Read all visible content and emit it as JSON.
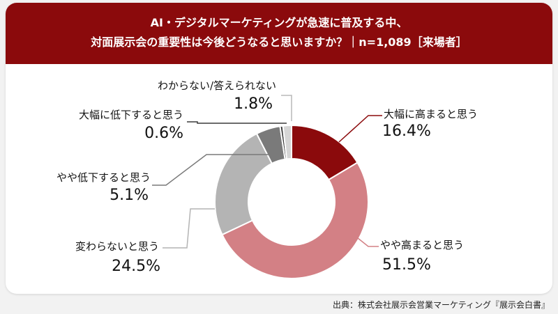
{
  "header": {
    "line1": "AI・デジタルマーケティングが急速に普及する中、",
    "line2": "対面展示会の重要性は今後どうなると思いますか？｜n=1,089［来場者］"
  },
  "source": "出典：株式会社展示会営業マーケティング『展示会白書』",
  "colors": {
    "header_bg": "#8b0a0c",
    "increase_a_lot": "#8b0a0c",
    "increase_somewhat": "#d38085",
    "no_change": "#b4b4b4",
    "decrease_somewhat": "#7a7a7a",
    "decrease_a_lot": "#3a3a3a",
    "dont_know": "#d6d6d6"
  },
  "chart_data": {
    "type": "pie",
    "style": "donut",
    "slices": [
      {
        "label": "大幅に高まると思う",
        "value": 16.4,
        "value_label": "16.4%",
        "color": "#8b0a0c"
      },
      {
        "label": "やや高まると思う",
        "value": 51.5,
        "value_label": "51.5%",
        "color": "#d38085"
      },
      {
        "label": "変わらないと思う",
        "value": 24.5,
        "value_label": "24.5%",
        "color": "#b4b4b4"
      },
      {
        "label": "やや低下すると思う",
        "value": 5.1,
        "value_label": "5.1%",
        "color": "#7a7a7a"
      },
      {
        "label": "大幅に低下すると思う",
        "value": 0.6,
        "value_label": "0.6%",
        "color": "#3a3a3a"
      },
      {
        "label": "わからない/答えられない",
        "value": 1.8,
        "value_label": "1.8%",
        "color": "#d6d6d6"
      }
    ]
  }
}
